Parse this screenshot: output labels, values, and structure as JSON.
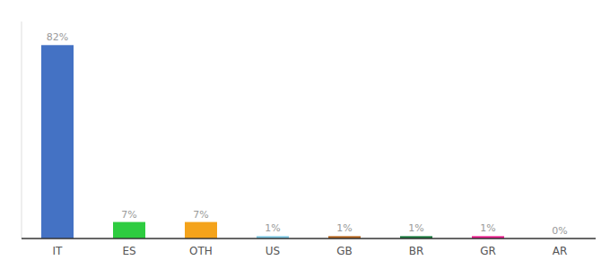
{
  "chart_data": {
    "type": "bar",
    "categories": [
      "IT",
      "ES",
      "OTH",
      "US",
      "GB",
      "BR",
      "GR",
      "AR"
    ],
    "values": [
      82,
      7,
      7,
      1,
      1,
      1,
      1,
      0
    ],
    "value_labels": [
      "82%",
      "7%",
      "7%",
      "1%",
      "1%",
      "1%",
      "1%",
      "0%"
    ],
    "colors": [
      "#4472c4",
      "#2ecc40",
      "#f4a31b",
      "#7ec8e3",
      "#b5651d",
      "#1a7a3e",
      "#e91e8c",
      "#cccccc"
    ],
    "ylim": [
      0,
      92
    ],
    "data_labels": true,
    "tick_labels": "x"
  }
}
